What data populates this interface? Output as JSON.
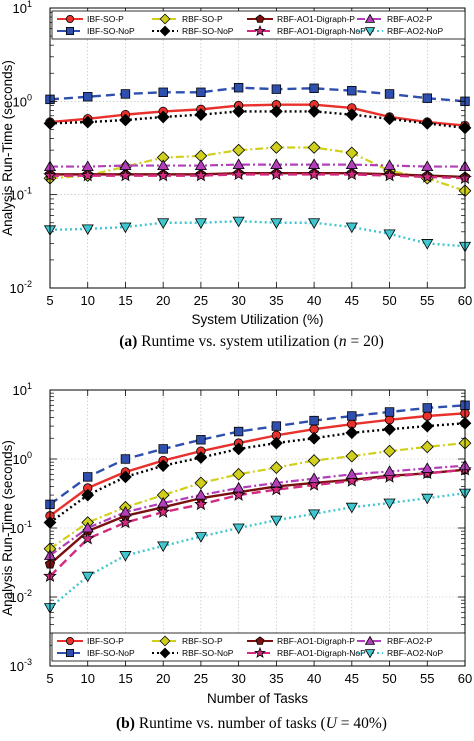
{
  "styles": {
    "IBF-SO-P": {
      "color": "#e8302c",
      "marker": "circle",
      "dash": "",
      "width": 2.4
    },
    "IBF-SO-NoP": {
      "color": "#2f4fae",
      "marker": "square",
      "dash": "9,5",
      "width": 2.4
    },
    "RBF-SO-P": {
      "color": "#cfcf1c",
      "marker": "diamond",
      "dash": "8,3,2,3",
      "width": 2.2
    },
    "RBF-SO-NoP": {
      "color": "#000000",
      "marker": "diamond",
      "dash": "2,3",
      "width": 2.4
    },
    "RBF-AO1-Digraph-P": {
      "color": "#7a1010",
      "marker": "pentagon",
      "dash": "",
      "width": 2.4
    },
    "RBF-AO1-Digraph-NoP": {
      "color": "#d12a7e",
      "marker": "star",
      "dash": "9,5",
      "width": 2.4
    },
    "RBF-AO2-P": {
      "color": "#b23fb9",
      "marker": "triangle",
      "dash": "8,3,2,3",
      "width": 2.2
    },
    "RBF-AO2-NoP": {
      "color": "#3fc6cf",
      "marker": "triangle-down",
      "dash": "2,3",
      "width": 2.4
    }
  },
  "chart_data": [
    {
      "type": "line",
      "ylabel": "Analysis Run-Time (seconds)",
      "xlabel": "System Utilization (%)",
      "yscale": "log",
      "ylim": [
        0.01,
        10
      ],
      "xlim": [
        5,
        60
      ],
      "grid": true,
      "legend": "top",
      "yticks": [
        {
          "v": 0.01,
          "b": "10",
          "e": "-2"
        },
        {
          "v": 0.1,
          "b": "10",
          "e": "-1"
        },
        {
          "v": 1,
          "b": "10",
          "e": "0"
        },
        {
          "v": 10,
          "b": "10",
          "e": "1"
        }
      ],
      "x": [
        5,
        10,
        15,
        20,
        25,
        30,
        35,
        40,
        45,
        50,
        55,
        60
      ],
      "x_ticks": [
        "5",
        "10",
        "15",
        "20",
        "25",
        "30",
        "35",
        "40",
        "45",
        "50",
        "55",
        "60"
      ],
      "caption": {
        "label": "(a)",
        "text": "Runtime vs. system utilization (",
        "var": "n",
        "rest": " = 20)"
      },
      "series": [
        {
          "name": "IBF-SO-P",
          "values": [
            0.6,
            0.65,
            0.72,
            0.78,
            0.82,
            0.9,
            0.92,
            0.92,
            0.85,
            0.68,
            0.6,
            0.55
          ]
        },
        {
          "name": "IBF-SO-NoP",
          "values": [
            1.05,
            1.12,
            1.2,
            1.25,
            1.25,
            1.4,
            1.35,
            1.38,
            1.3,
            1.2,
            1.08,
            1.0
          ]
        },
        {
          "name": "RBF-SO-P",
          "values": [
            0.15,
            0.16,
            0.2,
            0.25,
            0.26,
            0.3,
            0.32,
            0.32,
            0.28,
            0.18,
            0.15,
            0.11
          ]
        },
        {
          "name": "RBF-SO-NoP",
          "values": [
            0.58,
            0.6,
            0.63,
            0.68,
            0.72,
            0.78,
            0.78,
            0.78,
            0.72,
            0.65,
            0.58,
            0.52
          ]
        },
        {
          "name": "RBF-AO1-Digraph-P",
          "values": [
            0.165,
            0.165,
            0.165,
            0.165,
            0.165,
            0.17,
            0.17,
            0.17,
            0.17,
            0.165,
            0.16,
            0.155
          ]
        },
        {
          "name": "RBF-AO1-Digraph-NoP",
          "values": [
            0.16,
            0.16,
            0.16,
            0.16,
            0.16,
            0.165,
            0.165,
            0.165,
            0.165,
            0.16,
            0.155,
            0.15
          ]
        },
        {
          "name": "RBF-AO2-P",
          "values": [
            0.2,
            0.2,
            0.205,
            0.205,
            0.205,
            0.21,
            0.21,
            0.21,
            0.21,
            0.205,
            0.2,
            0.2
          ]
        },
        {
          "name": "RBF-AO2-NoP",
          "values": [
            0.042,
            0.043,
            0.045,
            0.05,
            0.05,
            0.052,
            0.05,
            0.05,
            0.045,
            0.038,
            0.03,
            0.028
          ]
        }
      ]
    },
    {
      "type": "line",
      "ylabel": "Analysis Run-Time (seconds)",
      "xlabel": "Number of Tasks",
      "yscale": "log",
      "ylim": [
        0.001,
        10
      ],
      "xlim": [
        5,
        60
      ],
      "grid": true,
      "legend": "bottom",
      "yticks": [
        {
          "v": 0.001,
          "b": "10",
          "e": "-3"
        },
        {
          "v": 0.01,
          "b": "10",
          "e": "-2"
        },
        {
          "v": 0.1,
          "b": "10",
          "e": "-1"
        },
        {
          "v": 1,
          "b": "10",
          "e": "0"
        },
        {
          "v": 10,
          "b": "10",
          "e": "1"
        }
      ],
      "x": [
        5,
        10,
        15,
        20,
        25,
        30,
        35,
        40,
        45,
        50,
        55,
        60
      ],
      "x_ticks": [
        "5",
        "10",
        "15",
        "20",
        "25",
        "30",
        "35",
        "40",
        "45",
        "50",
        "55",
        "60"
      ],
      "caption": {
        "label": "(b)",
        "text": "Runtime vs. number of tasks (",
        "var": "U",
        "rest": " = 40%)"
      },
      "series": [
        {
          "name": "IBF-SO-P",
          "values": [
            0.15,
            0.38,
            0.65,
            0.95,
            1.3,
            1.7,
            2.2,
            2.7,
            3.2,
            3.7,
            4.2,
            4.6
          ]
        },
        {
          "name": "IBF-SO-NoP",
          "values": [
            0.22,
            0.55,
            1.0,
            1.4,
            1.9,
            2.5,
            3.0,
            3.6,
            4.2,
            4.8,
            5.5,
            6.0
          ]
        },
        {
          "name": "RBF-SO-P",
          "values": [
            0.05,
            0.12,
            0.2,
            0.3,
            0.45,
            0.6,
            0.75,
            0.95,
            1.1,
            1.3,
            1.5,
            1.7
          ]
        },
        {
          "name": "RBF-SO-NoP",
          "values": [
            0.12,
            0.3,
            0.55,
            0.8,
            1.05,
            1.4,
            1.7,
            2.0,
            2.4,
            2.7,
            3.0,
            3.3
          ]
        },
        {
          "name": "RBF-AO1-Digraph-P",
          "values": [
            0.03,
            0.09,
            0.15,
            0.2,
            0.27,
            0.33,
            0.4,
            0.45,
            0.5,
            0.57,
            0.62,
            0.7
          ]
        },
        {
          "name": "RBF-AO1-Digraph-NoP",
          "values": [
            0.02,
            0.07,
            0.12,
            0.17,
            0.22,
            0.3,
            0.36,
            0.42,
            0.48,
            0.55,
            0.62,
            0.7
          ]
        },
        {
          "name": "RBF-AO2-P",
          "values": [
            0.04,
            0.1,
            0.17,
            0.23,
            0.3,
            0.38,
            0.45,
            0.52,
            0.6,
            0.66,
            0.73,
            0.8
          ]
        },
        {
          "name": "RBF-AO2-NoP",
          "values": [
            0.007,
            0.02,
            0.04,
            0.055,
            0.075,
            0.1,
            0.13,
            0.16,
            0.2,
            0.23,
            0.27,
            0.32
          ]
        }
      ]
    }
  ]
}
